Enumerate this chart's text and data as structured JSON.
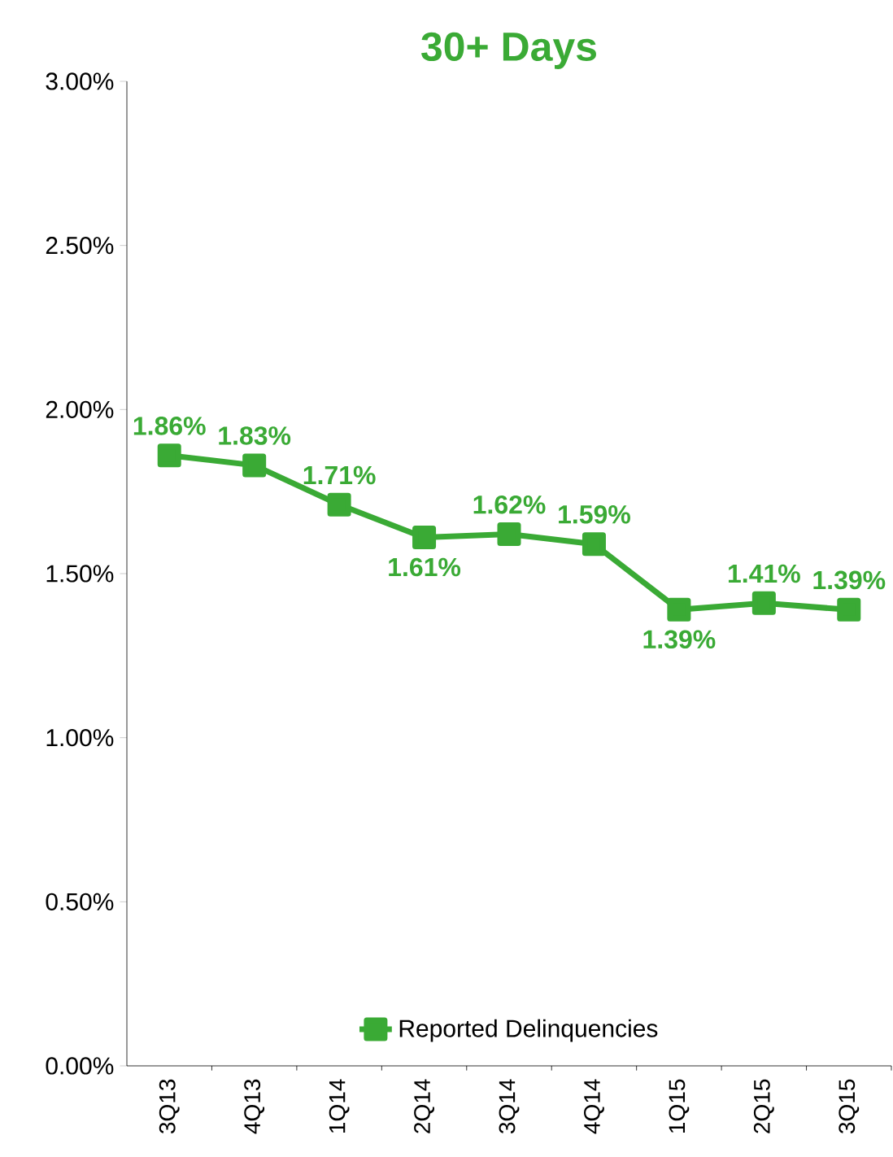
{
  "chart_data": {
    "type": "line",
    "title": "30+ Days",
    "categories": [
      "3Q13",
      "4Q13",
      "1Q14",
      "2Q14",
      "3Q14",
      "4Q14",
      "1Q15",
      "2Q15",
      "3Q15"
    ],
    "series": [
      {
        "name": "Reported Delinquencies",
        "color": "#3aaa35",
        "values": [
          1.86,
          1.83,
          1.71,
          1.61,
          1.62,
          1.59,
          1.39,
          1.41,
          1.39
        ],
        "value_labels": [
          "1.86%",
          "1.83%",
          "1.71%",
          "1.61%",
          "1.62%",
          "1.59%",
          "1.39%",
          "1.41%",
          "1.39%"
        ]
      }
    ],
    "ylim": [
      0,
      3
    ],
    "yticks": [
      {
        "value": 0,
        "label": "0.00%"
      },
      {
        "value": 0.5,
        "label": "0.50%"
      },
      {
        "value": 1,
        "label": "1.00%"
      },
      {
        "value": 1.5,
        "label": "1.50%"
      },
      {
        "value": 2,
        "label": "2.00%"
      },
      {
        "value": 2.5,
        "label": "2.50%"
      },
      {
        "value": 3,
        "label": "3.00%"
      }
    ],
    "grid": false,
    "legend": "bottom",
    "marker": "square",
    "line_style": "solid"
  }
}
